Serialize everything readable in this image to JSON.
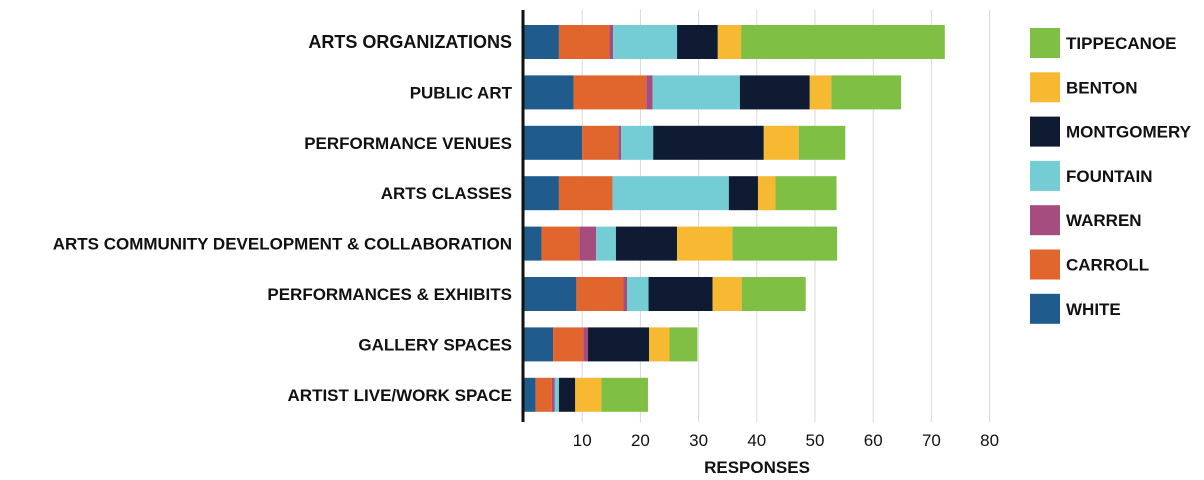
{
  "chart_data": {
    "type": "bar",
    "orientation": "horizontal",
    "stacked": true,
    "title": "",
    "xlabel": "RESPONSES",
    "ylabel": "",
    "xlim": [
      0,
      80
    ],
    "x_ticks": [
      10,
      20,
      30,
      40,
      50,
      60,
      70,
      80
    ],
    "grid": "vertical",
    "legend_position": "right",
    "categories": [
      "ARTS ORGANIZATIONS",
      "PUBLIC ART",
      "PERFORMANCE VENUES",
      "ARTS CLASSES",
      "ARTS COMMUNITY DEVELOPMENT & COLLABORATION",
      "PERFORMANCES & EXHIBITS",
      "GALLERY SPACES",
      "ARTIST LIVE/WORK SPACE"
    ],
    "emphasized_category": "ARTS ORGANIZATIONS",
    "series": [
      {
        "name": "WHITE",
        "color": "#1f5b8c",
        "values": [
          6,
          8.5,
          10,
          6,
          3,
          9,
          5,
          2
        ]
      },
      {
        "name": "CARROLL",
        "color": "#e0662e",
        "values": [
          8.7,
          12.5,
          6.2,
          9.2,
          6.5,
          8.1,
          5.2,
          2.8
        ]
      },
      {
        "name": "WARREN",
        "color": "#a64d7f",
        "values": [
          0.6,
          1.1,
          0.5,
          0,
          2.9,
          0.6,
          0.8,
          0.5
        ]
      },
      {
        "name": "FOUNTAIN",
        "color": "#74ccd4",
        "values": [
          11,
          15,
          5.5,
          20,
          3.4,
          3.7,
          0,
          0.7
        ]
      },
      {
        "name": "MONTGOMERY",
        "color": "#0f1a33",
        "values": [
          7,
          12,
          19,
          5,
          10.5,
          11,
          10.5,
          2.8
        ]
      },
      {
        "name": "BENTON",
        "color": "#f6b931",
        "values": [
          4,
          3.7,
          6,
          3,
          9.5,
          5,
          3.5,
          4.5
        ]
      },
      {
        "name": "TIPPECANOE",
        "color": "#7fbf44",
        "values": [
          35,
          12,
          8,
          10.5,
          18,
          11,
          4.8,
          8
        ]
      }
    ],
    "legend_order": [
      "TIPPECANOE",
      "BENTON",
      "MONTGOMERY",
      "FOUNTAIN",
      "WARREN",
      "CARROLL",
      "WHITE"
    ]
  }
}
